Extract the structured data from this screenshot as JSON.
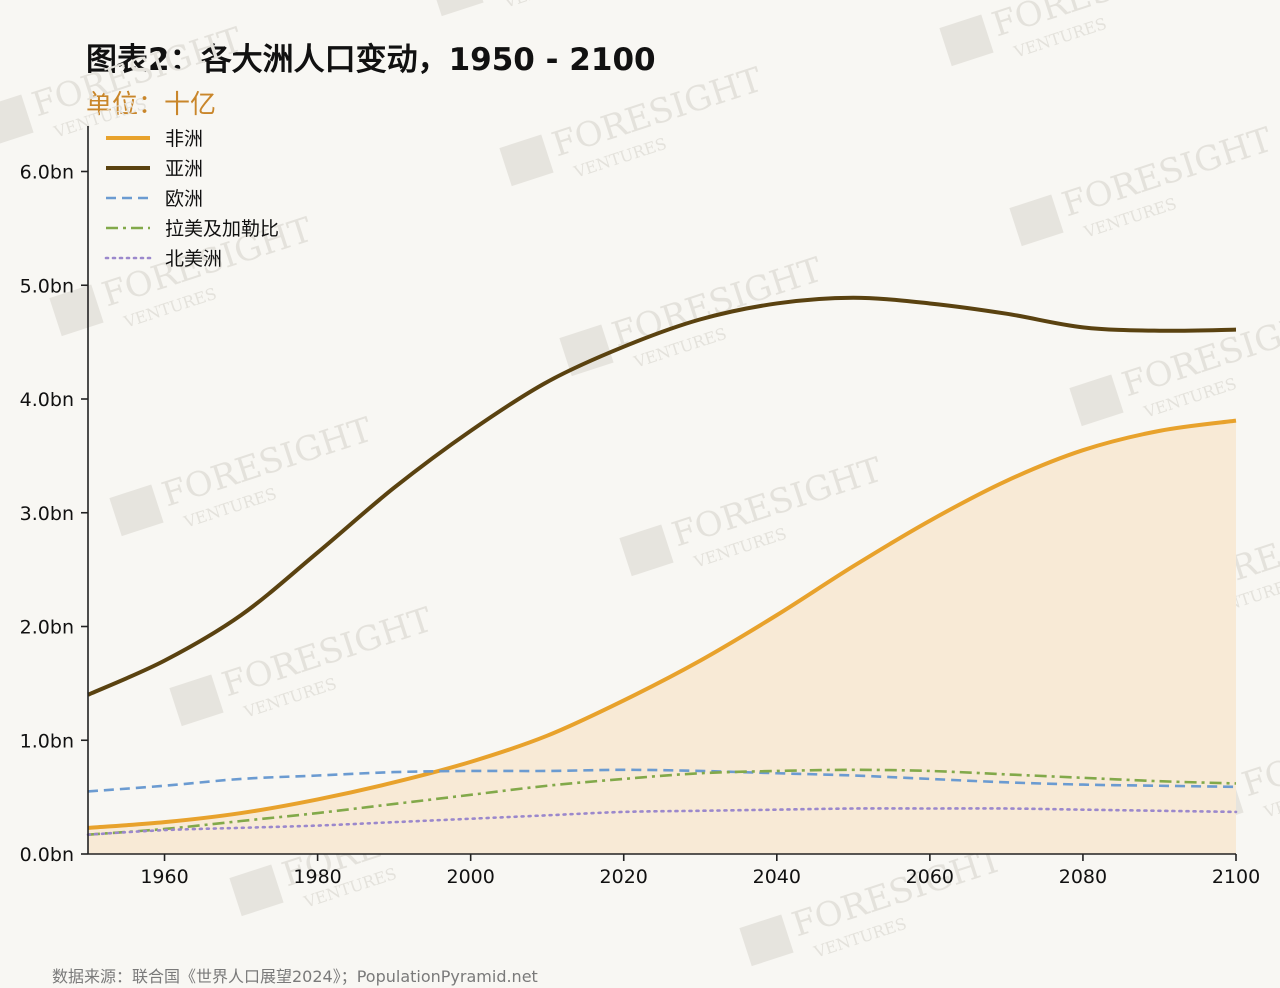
{
  "title": "图表2：各大洲人口变动，1950 - 2100",
  "subtitle": "单位：十亿",
  "source": "数据来源：联合国《世界人口展望2024》；PopulationPyramid.net",
  "watermark": {
    "brand": "FORESIGHT",
    "tagline": "VENTURES"
  },
  "chart_data": {
    "type": "line",
    "title": "图表2：各大洲人口变动，1950 - 2100",
    "xlabel": "",
    "ylabel": "",
    "x": [
      1950,
      1960,
      1970,
      1980,
      1990,
      2000,
      2010,
      2020,
      2030,
      2040,
      2050,
      2060,
      2070,
      2080,
      2090,
      2100
    ],
    "xlim": [
      1950,
      2100
    ],
    "ylim": [
      0,
      6.4
    ],
    "xticks": [
      {
        "value": 1960,
        "label": "1960"
      },
      {
        "value": 1980,
        "label": "1980"
      },
      {
        "value": 2000,
        "label": "2000"
      },
      {
        "value": 2020,
        "label": "2020"
      },
      {
        "value": 2040,
        "label": "2040"
      },
      {
        "value": 2060,
        "label": "2060"
      },
      {
        "value": 2080,
        "label": "2080"
      },
      {
        "value": 2100,
        "label": "2100"
      }
    ],
    "yticks": [
      {
        "value": 0,
        "label": "0.0bn"
      },
      {
        "value": 1,
        "label": "1.0bn"
      },
      {
        "value": 2,
        "label": "2.0bn"
      },
      {
        "value": 3,
        "label": "3.0bn"
      },
      {
        "value": 4,
        "label": "4.0bn"
      },
      {
        "value": 5,
        "label": "5.0bn"
      },
      {
        "value": 6,
        "label": "6.0bn"
      }
    ],
    "grid": false,
    "legend_position": "top-left",
    "series": [
      {
        "name": "非洲",
        "color": "#e8a22c",
        "style": "solid",
        "fill": true,
        "fill_color": "#f8ead6",
        "values": [
          0.23,
          0.28,
          0.36,
          0.48,
          0.63,
          0.81,
          1.04,
          1.35,
          1.7,
          2.1,
          2.53,
          2.93,
          3.28,
          3.55,
          3.72,
          3.81
        ]
      },
      {
        "name": "亚洲",
        "color": "#5a4210",
        "style": "solid",
        "fill": false,
        "values": [
          1.4,
          1.7,
          2.1,
          2.65,
          3.22,
          3.72,
          4.15,
          4.46,
          4.7,
          4.84,
          4.89,
          4.84,
          4.75,
          4.63,
          4.6,
          4.61
        ]
      },
      {
        "name": "欧洲",
        "color": "#6b9bd1",
        "style": "dashed",
        "fill": false,
        "values": [
          0.55,
          0.6,
          0.66,
          0.69,
          0.72,
          0.73,
          0.73,
          0.74,
          0.73,
          0.71,
          0.69,
          0.66,
          0.63,
          0.61,
          0.6,
          0.59
        ]
      },
      {
        "name": "拉美及加勒比",
        "color": "#82a94a",
        "style": "dashdot",
        "fill": false,
        "values": [
          0.17,
          0.22,
          0.29,
          0.36,
          0.44,
          0.52,
          0.6,
          0.66,
          0.71,
          0.73,
          0.74,
          0.73,
          0.7,
          0.67,
          0.64,
          0.62
        ]
      },
      {
        "name": "北美洲",
        "color": "#9b88cc",
        "style": "dotted",
        "fill": false,
        "values": [
          0.17,
          0.21,
          0.23,
          0.25,
          0.28,
          0.31,
          0.34,
          0.37,
          0.38,
          0.39,
          0.4,
          0.4,
          0.4,
          0.39,
          0.38,
          0.37
        ]
      }
    ]
  }
}
